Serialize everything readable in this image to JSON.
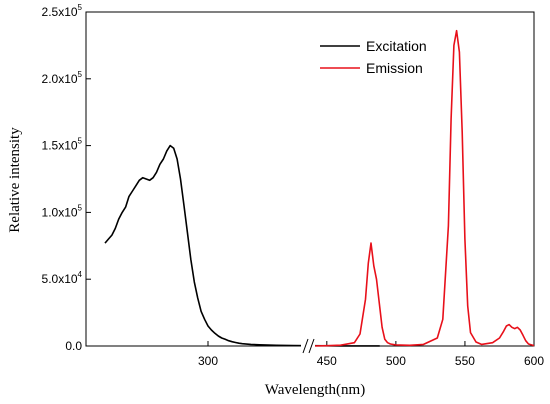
{
  "chart_data": {
    "type": "line",
    "xlabel": "Wavelength(nm)",
    "ylabel": "Relative intensity",
    "ylim": [
      0,
      250000
    ],
    "axis_break": {
      "after": 400,
      "before": 440
    },
    "x_ticks": [
      "300",
      "450",
      "500",
      "550",
      "600"
    ],
    "y_ticks": [
      {
        "mant": "0.0",
        "exp": ""
      },
      {
        "mant": "5.0x10",
        "exp": "4"
      },
      {
        "mant": "1.0x10",
        "exp": "5"
      },
      {
        "mant": "1.5x10",
        "exp": "5"
      },
      {
        "mant": "2.0x10",
        "exp": "5"
      },
      {
        "mant": "2.5x10",
        "exp": "5"
      }
    ],
    "legend_position": "top-right",
    "series": [
      {
        "name": "Excitation",
        "color": "#000000",
        "x": [
          240,
          242,
          244,
          246,
          248,
          250,
          252,
          254,
          256,
          258,
          260,
          262,
          264,
          266,
          268,
          270,
          272,
          274,
          276,
          278,
          280,
          282,
          284,
          286,
          288,
          290,
          292,
          294,
          296,
          298,
          300,
          302,
          304,
          306,
          308,
          310,
          312,
          314,
          316,
          318,
          320,
          325,
          330,
          340,
          350,
          360,
          370,
          380,
          390,
          400
        ],
        "y": [
          77000,
          80000,
          83000,
          88000,
          95000,
          100000,
          104000,
          112000,
          116000,
          120000,
          124000,
          126000,
          125000,
          124000,
          126000,
          130000,
          136000,
          140000,
          146000,
          150000,
          148000,
          140000,
          125000,
          105000,
          85000,
          65000,
          48000,
          36000,
          26000,
          20000,
          15000,
          12000,
          9500,
          7500,
          6000,
          5000,
          4000,
          3200,
          2600,
          2100,
          1700,
          1200,
          900,
          500,
          300,
          200,
          150,
          100,
          80,
          50
        ]
      },
      {
        "name": "Emission",
        "color": "#e8101a",
        "x": [
          440,
          450,
          460,
          470,
          474,
          478,
          480,
          482,
          484,
          486,
          488,
          490,
          492,
          494,
          496,
          500,
          510,
          520,
          530,
          534,
          538,
          540,
          542,
          544,
          546,
          548,
          550,
          552,
          554,
          558,
          562,
          570,
          575,
          578,
          580,
          582,
          584,
          586,
          588,
          590,
          592,
          594,
          596,
          600
        ],
        "y": [
          0,
          200,
          600,
          2500,
          9000,
          35000,
          62000,
          77000,
          60000,
          50000,
          32000,
          14000,
          5000,
          2500,
          1500,
          800,
          500,
          1200,
          6000,
          20000,
          90000,
          170000,
          225000,
          236000,
          220000,
          160000,
          80000,
          30000,
          10000,
          3000,
          1200,
          2500,
          6000,
          11000,
          15000,
          16000,
          14000,
          13000,
          14000,
          12000,
          8000,
          4000,
          1500,
          300
        ]
      }
    ]
  }
}
